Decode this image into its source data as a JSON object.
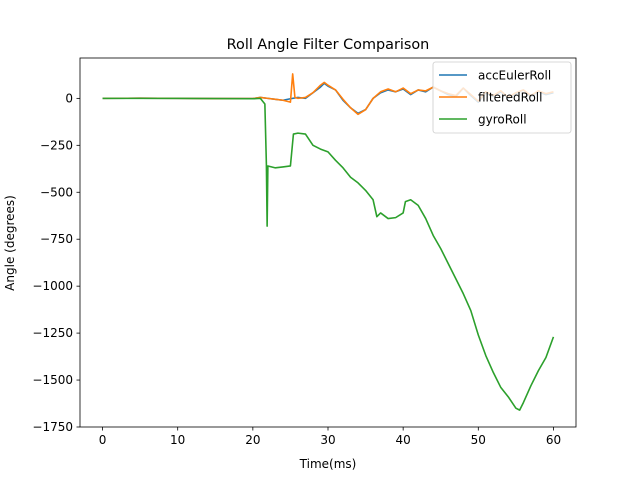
{
  "chart_data": {
    "type": "line",
    "title": "Roll Angle Filter Comparison",
    "xlabel": "Time(ms)",
    "ylabel": "Angle (degrees)",
    "xlim": [
      -3,
      63
    ],
    "ylim": [
      -1750,
      215
    ],
    "xticks": [
      0,
      10,
      20,
      30,
      40,
      50,
      60
    ],
    "xtick_labels": [
      "0",
      "10",
      "20",
      "30",
      "40",
      "50",
      "60"
    ],
    "yticks": [
      -1750,
      -1500,
      -1250,
      -1000,
      -750,
      -500,
      -250,
      0
    ],
    "ytick_labels": [
      "−1750",
      "−1500",
      "−1250",
      "−1000",
      "−750",
      "−500",
      "−250",
      "0"
    ],
    "grid": false,
    "legend_position": "top-right",
    "series": [
      {
        "name": "accEulerRoll",
        "color": "#1f77b4",
        "points": [
          [
            0,
            0
          ],
          [
            5,
            1
          ],
          [
            10,
            0
          ],
          [
            15,
            -1
          ],
          [
            20,
            -1
          ],
          [
            21,
            5
          ],
          [
            22,
            0
          ],
          [
            23,
            -5
          ],
          [
            24,
            -10
          ],
          [
            25,
            -2
          ],
          [
            26,
            5
          ],
          [
            27,
            0
          ],
          [
            28,
            30
          ],
          [
            29,
            60
          ],
          [
            29.5,
            80
          ],
          [
            30,
            65
          ],
          [
            31,
            45
          ],
          [
            32,
            -10
          ],
          [
            33,
            -50
          ],
          [
            34,
            -80
          ],
          [
            35,
            -60
          ],
          [
            36,
            0
          ],
          [
            37,
            30
          ],
          [
            38,
            45
          ],
          [
            39,
            35
          ],
          [
            40,
            50
          ],
          [
            41,
            20
          ],
          [
            42,
            45
          ],
          [
            43,
            35
          ],
          [
            44,
            60
          ],
          [
            45,
            40
          ],
          [
            46,
            20
          ],
          [
            47,
            10
          ],
          [
            48,
            55
          ],
          [
            49,
            15
          ],
          [
            50,
            -20
          ],
          [
            51,
            30
          ],
          [
            52,
            10
          ],
          [
            53,
            35
          ],
          [
            54,
            0
          ],
          [
            55,
            25
          ],
          [
            56,
            45
          ],
          [
            57,
            10
          ],
          [
            58,
            35
          ],
          [
            59,
            20
          ],
          [
            60,
            30
          ]
        ]
      },
      {
        "name": "filteredRoll",
        "color": "#ff7f0e",
        "points": [
          [
            0,
            0
          ],
          [
            5,
            1
          ],
          [
            10,
            0
          ],
          [
            15,
            -1
          ],
          [
            20,
            -1
          ],
          [
            21,
            5
          ],
          [
            22,
            0
          ],
          [
            23,
            -5
          ],
          [
            24,
            -10
          ],
          [
            25,
            -20
          ],
          [
            25.3,
            130
          ],
          [
            25.6,
            5
          ],
          [
            26,
            0
          ],
          [
            27,
            5
          ],
          [
            28,
            30
          ],
          [
            29,
            70
          ],
          [
            29.5,
            85
          ],
          [
            30,
            70
          ],
          [
            31,
            45
          ],
          [
            32,
            -5
          ],
          [
            33,
            -50
          ],
          [
            34,
            -85
          ],
          [
            35,
            -60
          ],
          [
            36,
            0
          ],
          [
            37,
            35
          ],
          [
            38,
            50
          ],
          [
            39,
            35
          ],
          [
            40,
            55
          ],
          [
            41,
            25
          ],
          [
            42,
            45
          ],
          [
            43,
            40
          ],
          [
            44,
            60
          ],
          [
            45,
            40
          ],
          [
            46,
            25
          ],
          [
            47,
            15
          ],
          [
            48,
            55
          ],
          [
            49,
            20
          ],
          [
            50,
            -15
          ],
          [
            51,
            35
          ],
          [
            52,
            15
          ],
          [
            53,
            40
          ],
          [
            54,
            5
          ],
          [
            55,
            30
          ],
          [
            56,
            45
          ],
          [
            57,
            15
          ],
          [
            58,
            40
          ],
          [
            59,
            25
          ],
          [
            60,
            35
          ]
        ]
      },
      {
        "name": "gyroRoll",
        "color": "#2ca02c",
        "points": [
          [
            0,
            0
          ],
          [
            10,
            0
          ],
          [
            20,
            -2
          ],
          [
            21,
            0
          ],
          [
            21.6,
            -30
          ],
          [
            21.8,
            -350
          ],
          [
            21.9,
            -680
          ],
          [
            22,
            -360
          ],
          [
            23,
            -370
          ],
          [
            24,
            -365
          ],
          [
            25,
            -360
          ],
          [
            25.4,
            -190
          ],
          [
            26,
            -185
          ],
          [
            27,
            -190
          ],
          [
            28,
            -250
          ],
          [
            29,
            -270
          ],
          [
            30,
            -285
          ],
          [
            31,
            -330
          ],
          [
            32,
            -370
          ],
          [
            33,
            -420
          ],
          [
            34,
            -450
          ],
          [
            35,
            -490
          ],
          [
            36,
            -540
          ],
          [
            36.5,
            -630
          ],
          [
            37,
            -610
          ],
          [
            38,
            -640
          ],
          [
            39,
            -635
          ],
          [
            40,
            -610
          ],
          [
            40.3,
            -550
          ],
          [
            41,
            -540
          ],
          [
            42,
            -570
          ],
          [
            43,
            -640
          ],
          [
            44,
            -730
          ],
          [
            45,
            -800
          ],
          [
            46,
            -880
          ],
          [
            47,
            -960
          ],
          [
            48,
            -1040
          ],
          [
            49,
            -1130
          ],
          [
            50,
            -1260
          ],
          [
            51,
            -1370
          ],
          [
            52,
            -1460
          ],
          [
            53,
            -1540
          ],
          [
            54,
            -1590
          ],
          [
            55,
            -1650
          ],
          [
            55.5,
            -1660
          ],
          [
            56,
            -1620
          ],
          [
            57,
            -1530
          ],
          [
            58,
            -1450
          ],
          [
            59,
            -1380
          ],
          [
            60,
            -1270
          ]
        ]
      }
    ]
  }
}
